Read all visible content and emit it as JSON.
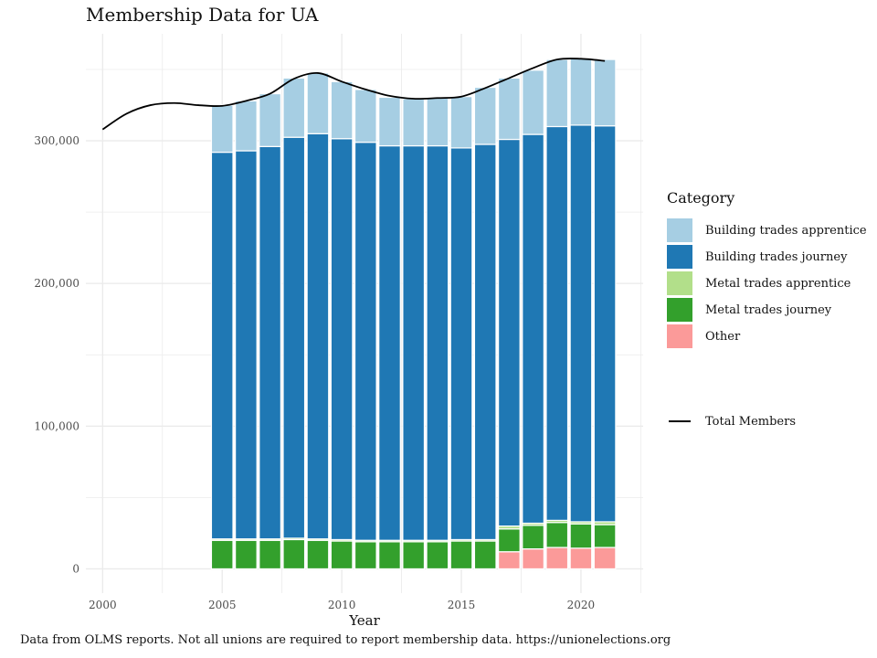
{
  "title": "Membership Data for UA",
  "caption": "Data from OLMS reports. Not all unions are required to report membership data. https://unionelections.org",
  "chart_data": {
    "type": "bar",
    "stacked": true,
    "title": "Membership Data for UA",
    "xlabel": "Year",
    "ylabel": "",
    "xlim": [
      1999.3,
      2022.6
    ],
    "ylim": [
      -17000,
      375000
    ],
    "x_ticks": [
      2000,
      2005,
      2010,
      2015,
      2020
    ],
    "y_ticks": [
      0,
      100000,
      200000,
      300000
    ],
    "y_tick_labels": [
      "0",
      "100,000",
      "200,000",
      "300,000"
    ],
    "grid": true,
    "legend_title": "Category",
    "legend_position": "right",
    "categories": [
      2005,
      2006,
      2007,
      2008,
      2009,
      2010,
      2011,
      2012,
      2013,
      2014,
      2015,
      2016,
      2017,
      2018,
      2019,
      2020,
      2021
    ],
    "series": [
      {
        "name": "Other",
        "color": "#FB9A99",
        "values": [
          0,
          0,
          0,
          0,
          0,
          0,
          0,
          0,
          0,
          0,
          0,
          0,
          12000,
          14000,
          15000,
          14500,
          15000
        ]
      },
      {
        "name": "Metal trades journey",
        "color": "#33A02C",
        "values": [
          20000,
          20000,
          20000,
          20500,
          20000,
          19500,
          19000,
          19000,
          19000,
          19000,
          19500,
          19500,
          16000,
          16500,
          17500,
          17000,
          16000
        ]
      },
      {
        "name": "Metal trades apprentice",
        "color": "#B2DF8A",
        "values": [
          1000,
          1000,
          1000,
          1000,
          1000,
          1000,
          1000,
          1000,
          1000,
          1000,
          1000,
          1000,
          2000,
          1500,
          1500,
          1500,
          2000
        ]
      },
      {
        "name": "Building trades journey",
        "color": "#1F78B4",
        "values": [
          271000,
          272000,
          275000,
          281000,
          284000,
          281000,
          279000,
          276500,
          276500,
          276500,
          274500,
          277000,
          271000,
          272500,
          276000,
          278000,
          277500
        ]
      },
      {
        "name": "Building trades apprentice",
        "color": "#A6CEE3",
        "values": [
          33000,
          35000,
          37000,
          41500,
          42500,
          40000,
          37000,
          34000,
          33000,
          33500,
          36000,
          40000,
          43000,
          45000,
          47000,
          47000,
          46500
        ]
      }
    ],
    "legend_order": [
      "Building trades apprentice",
      "Building trades journey",
      "Metal trades apprentice",
      "Metal trades journey",
      "Other"
    ],
    "line": {
      "name": "Total Members",
      "color": "#000000",
      "x": [
        2000,
        2001,
        2002,
        2003,
        2004,
        2005,
        2006,
        2007,
        2008,
        2009,
        2010,
        2011,
        2012,
        2013,
        2014,
        2015,
        2016,
        2017,
        2018,
        2019,
        2020,
        2021
      ],
      "values": [
        308000,
        319000,
        325000,
        326500,
        325000,
        324500,
        328000,
        333000,
        343500,
        347500,
        341500,
        336000,
        331500,
        329500,
        330000,
        331000,
        337000,
        344000,
        351000,
        357000,
        357500,
        356000
      ]
    }
  }
}
